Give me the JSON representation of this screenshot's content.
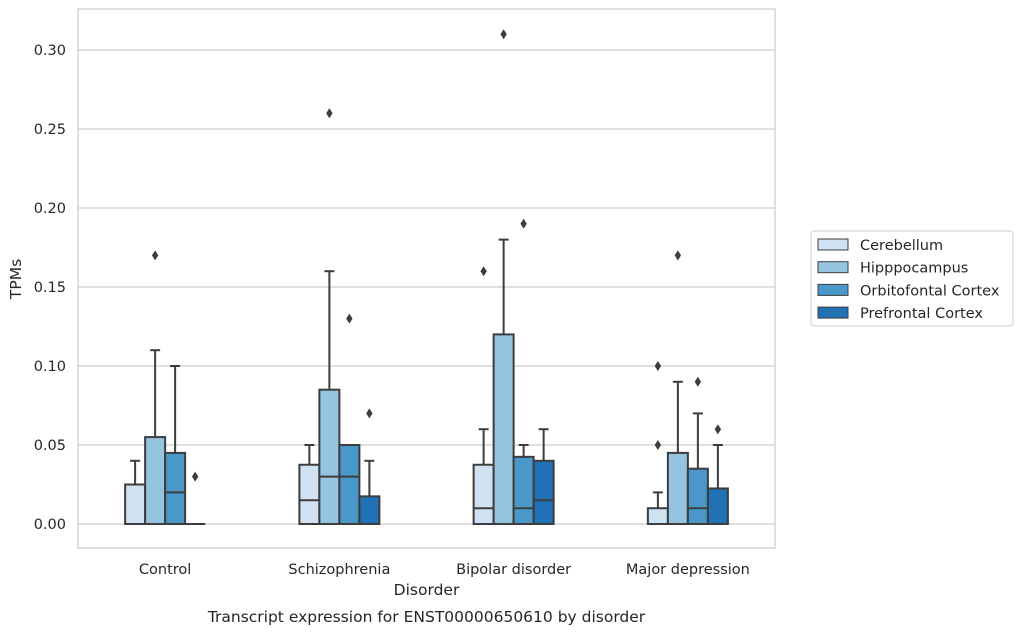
{
  "chart_data": {
    "type": "box",
    "xlabel": "Disorder",
    "ylabel": "TPMs",
    "caption": "Transcript expression for ENST00000650610 by disorder",
    "ylim": [
      -0.015,
      0.325
    ],
    "yticks": [
      "0.00",
      "0.05",
      "0.10",
      "0.15",
      "0.20",
      "0.25",
      "0.30"
    ],
    "grid": "horizontal",
    "legend_position": "right",
    "categories": [
      "Control",
      "Schizophrenia",
      "Bipolar disorder",
      "Major depression"
    ],
    "series": [
      {
        "name": "Cerebellum",
        "color": "#d0e1f2",
        "boxes": [
          {
            "min": 0.0,
            "q1": 0.0,
            "median": 0.0,
            "q3": 0.025,
            "max": 0.04,
            "outliers": []
          },
          {
            "min": 0.0,
            "q1": 0.0,
            "median": 0.015,
            "q3": 0.0375,
            "max": 0.05,
            "outliers": []
          },
          {
            "min": 0.0,
            "q1": 0.0,
            "median": 0.01,
            "q3": 0.0375,
            "max": 0.06,
            "outliers": [
              0.16
            ]
          },
          {
            "min": 0.0,
            "q1": 0.0,
            "median": 0.0,
            "q3": 0.01,
            "max": 0.02,
            "outliers": [
              0.05,
              0.1
            ]
          }
        ]
      },
      {
        "name": "Hipppocampus",
        "color": "#94c4df",
        "boxes": [
          {
            "min": 0.0,
            "q1": 0.0,
            "median": 0.0,
            "q3": 0.055,
            "max": 0.11,
            "outliers": [
              0.17
            ]
          },
          {
            "min": 0.0,
            "q1": 0.0,
            "median": 0.03,
            "q3": 0.085,
            "max": 0.16,
            "outliers": [
              0.26
            ]
          },
          {
            "min": 0.0,
            "q1": 0.0,
            "median": 0.0,
            "q3": 0.12,
            "max": 0.18,
            "outliers": [
              0.31
            ]
          },
          {
            "min": 0.0,
            "q1": 0.0,
            "median": 0.0,
            "q3": 0.045,
            "max": 0.09,
            "outliers": [
              0.17
            ]
          }
        ]
      },
      {
        "name": "Orbitofontal Cortex",
        "color": "#4a98c9",
        "boxes": [
          {
            "min": 0.0,
            "q1": 0.0,
            "median": 0.02,
            "q3": 0.045,
            "max": 0.1,
            "outliers": []
          },
          {
            "min": 0.0,
            "q1": 0.0,
            "median": 0.03,
            "q3": 0.05,
            "max": 0.05,
            "outliers": [
              0.13
            ]
          },
          {
            "min": 0.0,
            "q1": 0.0,
            "median": 0.01,
            "q3": 0.0425,
            "max": 0.05,
            "outliers": [
              0.19
            ]
          },
          {
            "min": 0.0,
            "q1": 0.0,
            "median": 0.01,
            "q3": 0.035,
            "max": 0.07,
            "outliers": [
              0.09
            ]
          }
        ]
      },
      {
        "name": "Prefrontal Cortex",
        "color": "#2171b5",
        "boxes": [
          {
            "min": 0.0,
            "q1": 0.0,
            "median": 0.0,
            "q3": 0.0,
            "max": 0.0,
            "outliers": [
              0.03
            ]
          },
          {
            "min": 0.0,
            "q1": 0.0,
            "median": 0.0,
            "q3": 0.0175,
            "max": 0.04,
            "outliers": [
              0.07
            ]
          },
          {
            "min": 0.0,
            "q1": 0.0,
            "median": 0.015,
            "q3": 0.04,
            "max": 0.06,
            "outliers": []
          },
          {
            "min": 0.0,
            "q1": 0.0,
            "median": 0.0,
            "q3": 0.0225,
            "max": 0.05,
            "outliers": [
              0.06
            ]
          }
        ]
      }
    ]
  }
}
